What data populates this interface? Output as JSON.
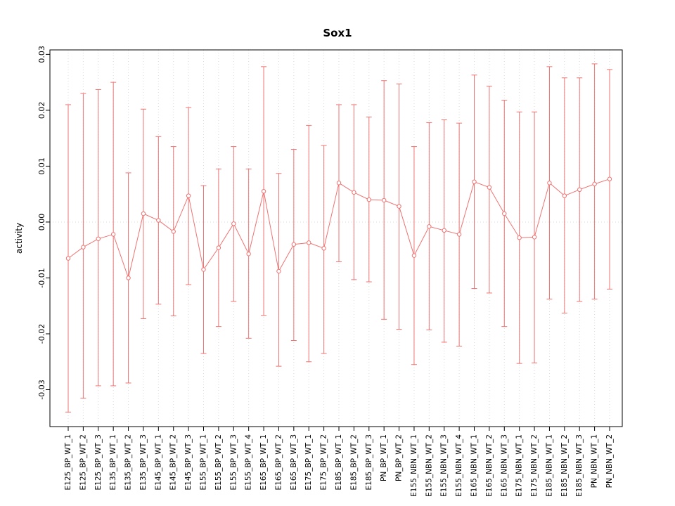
{
  "chart_data": {
    "type": "scatter",
    "title": "Sox1",
    "xlabel": "",
    "ylabel": "activity",
    "legend": "none",
    "grid": "dotted vertical line at each category; dotted horizontal line at 0",
    "series_color": "#ee7372",
    "grid_color": "#d9d9d9",
    "axis_color": "#000000",
    "ylim": [
      -0.0366,
      0.0308
    ],
    "yticks": {
      "values": [
        0.03,
        0.02,
        0.01,
        0.0,
        -0.01,
        -0.02,
        -0.03
      ],
      "labels": [
        "0.03",
        "0.02",
        "0.01",
        "0.00",
        "-0.01",
        "-0.02",
        "-0.03"
      ]
    },
    "categories": [
      "E125_BP_WT_1",
      "E125_BP_WT_2",
      "E125_BP_WT_3",
      "E135_BP_WT_1",
      "E135_BP_WT_2",
      "E135_BP_WT_3",
      "E145_BP_WT_1",
      "E145_BP_WT_2",
      "E145_BP_WT_3",
      "E155_BP_WT_1",
      "E155_BP_WT_2",
      "E155_BP_WT_3",
      "E155_BP_WT_4",
      "E165_BP_WT_1",
      "E165_BP_WT_2",
      "E165_BP_WT_3",
      "E175_BP_WT_1",
      "E175_BP_WT_2",
      "E185_BP_WT_1",
      "E185_BP_WT_2",
      "E185_BP_WT_3",
      "PN_BP_WT_1",
      "PN_BP_WT_2",
      "E155_NBN_WT_1",
      "E155_NBN_WT_2",
      "E155_NBN_WT_3",
      "E155_NBN_WT_4",
      "E165_NBN_WT_1",
      "E165_NBN_WT_2",
      "E165_NBN_WT_3",
      "E175_NBN_WT_1",
      "E175_NBN_WT_2",
      "E185_NBN_WT_1",
      "E185_NBN_WT_2",
      "E185_NBN_WT_3",
      "PN_NBN_WT_1",
      "PN_NBN_WT_2"
    ],
    "series": [
      {
        "name": "activity",
        "values": [
          -0.0065,
          -0.0045,
          -0.003,
          -0.0022,
          -0.01,
          0.0015,
          0.0003,
          -0.0017,
          0.0047,
          -0.0085,
          -0.0046,
          -0.0003,
          -0.0057,
          0.0055,
          -0.0088,
          -0.004,
          -0.0037,
          -0.0047,
          0.007,
          0.0053,
          0.004,
          0.0039,
          0.0028,
          -0.006,
          -0.0008,
          -0.0015,
          -0.0022,
          0.0072,
          0.0062,
          0.0015,
          -0.0028,
          -0.0027,
          0.007,
          0.0047,
          0.0058,
          0.0068,
          0.0077
        ],
        "upper": [
          0.021,
          0.023,
          0.0237,
          0.025,
          0.0088,
          0.0202,
          0.0153,
          0.0135,
          0.0205,
          0.0065,
          0.0095,
          0.0135,
          0.0095,
          0.0278,
          0.0087,
          0.013,
          0.0173,
          0.0137,
          0.021,
          0.021,
          0.0188,
          0.0253,
          0.0247,
          0.0135,
          0.0178,
          0.0183,
          0.0177,
          0.0263,
          0.0243,
          0.0218,
          0.0197,
          0.0197,
          0.0278,
          0.0258,
          0.0258,
          0.0283,
          0.0273
        ],
        "lower": [
          -0.034,
          -0.0315,
          -0.0293,
          -0.0293,
          -0.0288,
          -0.0173,
          -0.0147,
          -0.0168,
          -0.0112,
          -0.0235,
          -0.0187,
          -0.0142,
          -0.0208,
          -0.0167,
          -0.0258,
          -0.0212,
          -0.025,
          -0.0235,
          -0.0071,
          -0.0103,
          -0.0107,
          -0.0174,
          -0.0192,
          -0.0255,
          -0.0193,
          -0.0215,
          -0.0222,
          -0.0119,
          -0.0127,
          -0.0187,
          -0.0253,
          -0.0252,
          -0.0138,
          -0.0163,
          -0.0142,
          -0.0138,
          -0.012
        ]
      }
    ]
  }
}
